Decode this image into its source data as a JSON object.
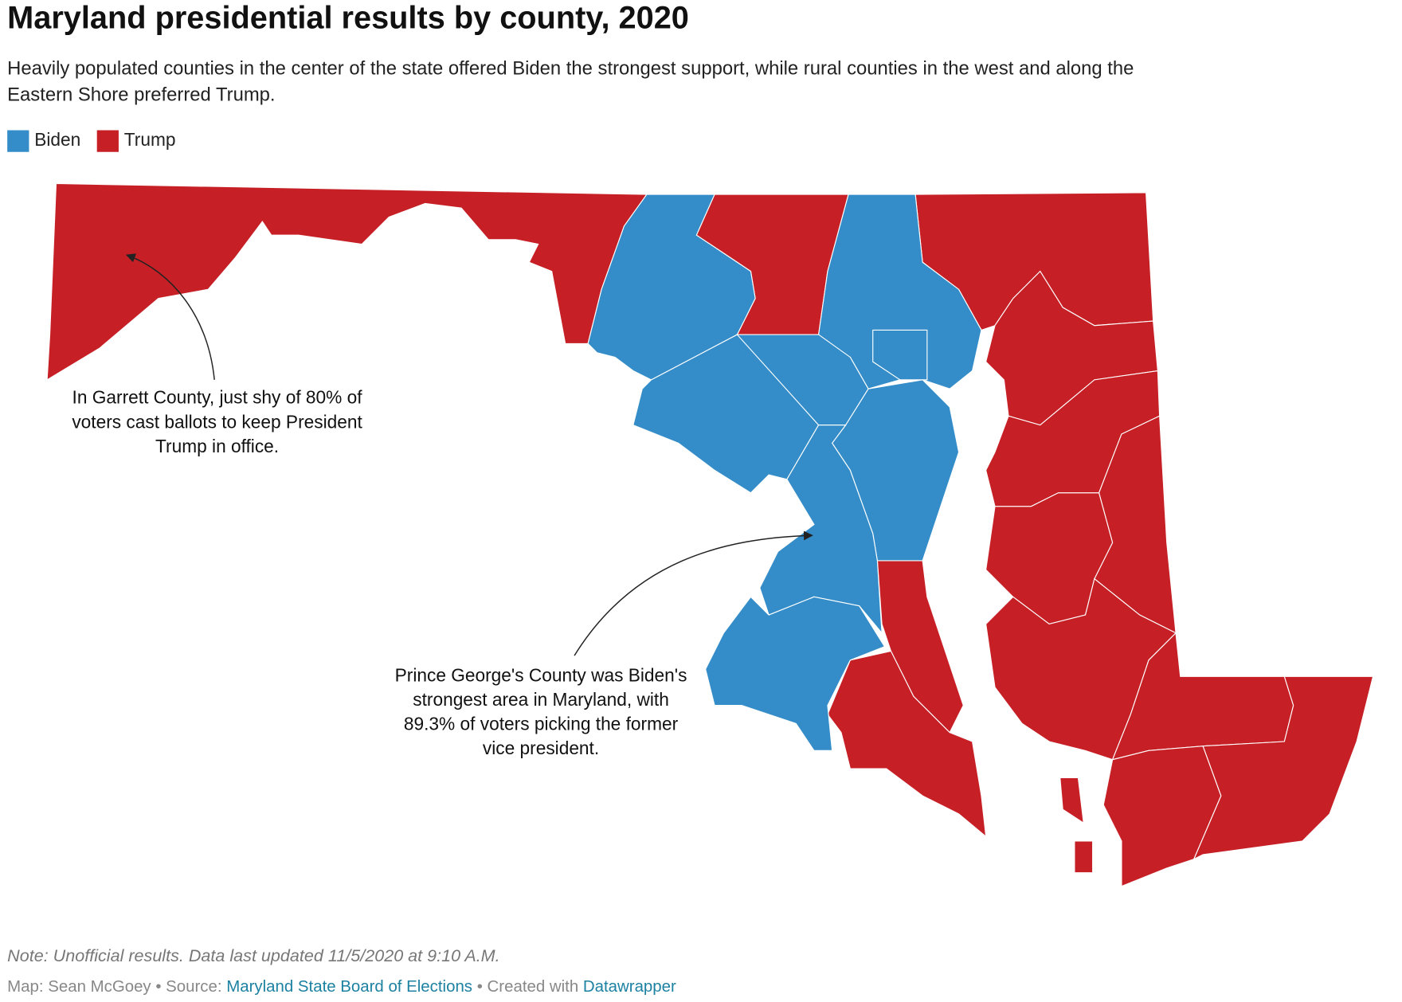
{
  "header": {
    "title": "Maryland presidential results by county, 2020",
    "subtitle": [
      "Heavily populated counties in the center of the state offered Biden the strongest support, while rural counties in the west and along the",
      "Eastern Shore preferred Trump."
    ]
  },
  "legend": [
    {
      "label": "Biden",
      "color": "#348dc8"
    },
    {
      "label": "Trump",
      "color": "#c62026"
    }
  ],
  "annotations": [
    {
      "lines": [
        "In Garrett County, just shy of 80% of",
        "voters cast ballots to keep President",
        "Trump in office."
      ]
    },
    {
      "lines": [
        "Prince George's County was Biden's",
        "strongest area in Maryland, with",
        "89.3% of voters picking the former",
        "vice president."
      ]
    }
  ],
  "footer": {
    "note": "Note: Unofficial results. Data last updated 11/5/2020 at 9:10 A.M.",
    "map_credit": "Map: Sean McGoey",
    "separator": "•",
    "source_label": "Source:",
    "source_name": "Maryland State Board of Elections",
    "created_label": "Created with",
    "created_name": "Datawrapper"
  }
}
